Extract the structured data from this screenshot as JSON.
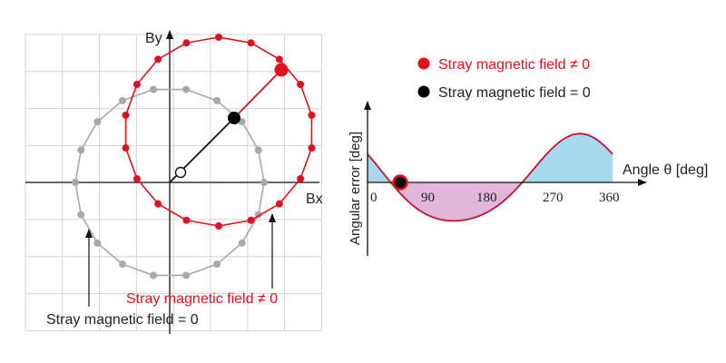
{
  "left_diagram": {
    "x_axis_label": "Bx",
    "y_axis_label": "By",
    "origin_label": "O",
    "red_label": "Stray magnetic field ≠ 0",
    "gray_label": "Stray magnetic field = 0"
  },
  "legend": {
    "items": [
      {
        "color": "#e0101e",
        "label": "Stray magnetic field ≠ 0"
      },
      {
        "color": "#000000",
        "label": "Stray magnetic field = 0"
      }
    ]
  },
  "error_plot": {
    "y_axis_label": "Angular error [deg]",
    "x_axis_label": "Angle θ [deg]",
    "ticks": [
      "0",
      "90",
      "180",
      "270",
      "360"
    ]
  },
  "colors": {
    "red": "#e0101e",
    "gray": "#a8a8a8",
    "grid": "#d4d4d4",
    "positive_fill": "#a7d9ee",
    "negative_fill": "#e2b6da"
  }
}
